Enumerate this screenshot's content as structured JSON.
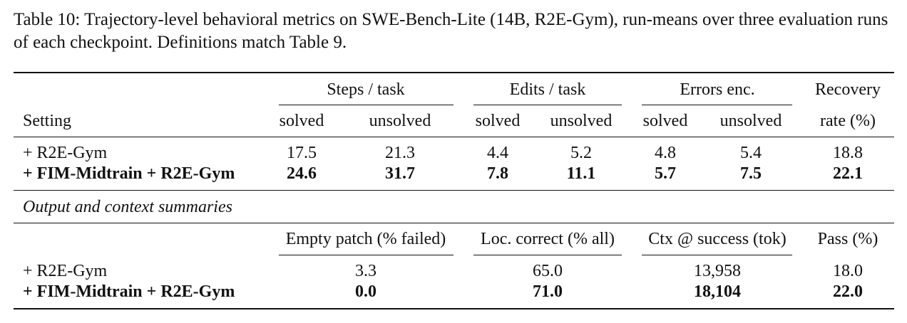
{
  "caption": "Table 10: Trajectory-level behavioral metrics on SWE-Bench-Lite (14B, R2E-Gym), run-means over three evaluation runs of each checkpoint. Definitions match Table 9.",
  "header": {
    "setting": "Setting",
    "groups": {
      "steps": "Steps / task",
      "edits": "Edits / task",
      "errors": "Errors enc.",
      "recovery_top": "Recovery"
    },
    "sub": {
      "solved": "solved",
      "unsolved": "unsolved",
      "recovery_bottom": "rate (%)"
    }
  },
  "rows": [
    {
      "setting": "+ R2E-Gym",
      "values": [
        "17.5",
        "21.3",
        "4.4",
        "5.2",
        "4.8",
        "5.4",
        "18.8"
      ]
    },
    {
      "setting": "+ FIM-Midtrain + R2E-Gym",
      "values": [
        "24.6",
        "31.7",
        "7.8",
        "11.1",
        "5.7",
        "7.5",
        "22.1"
      ]
    }
  ],
  "section2": {
    "title": "Output and context summaries",
    "headers": [
      "Empty patch (% failed)",
      "Loc. correct (% all)",
      "Ctx @ success (tok)",
      "Pass (%)"
    ],
    "rows": [
      {
        "setting": "+ R2E-Gym",
        "values": [
          "3.3",
          "65.0",
          "13,958",
          "18.0"
        ]
      },
      {
        "setting": "+ FIM-Midtrain + R2E-Gym",
        "values": [
          "0.0",
          "71.0",
          "18,104",
          "22.0"
        ]
      }
    ]
  }
}
